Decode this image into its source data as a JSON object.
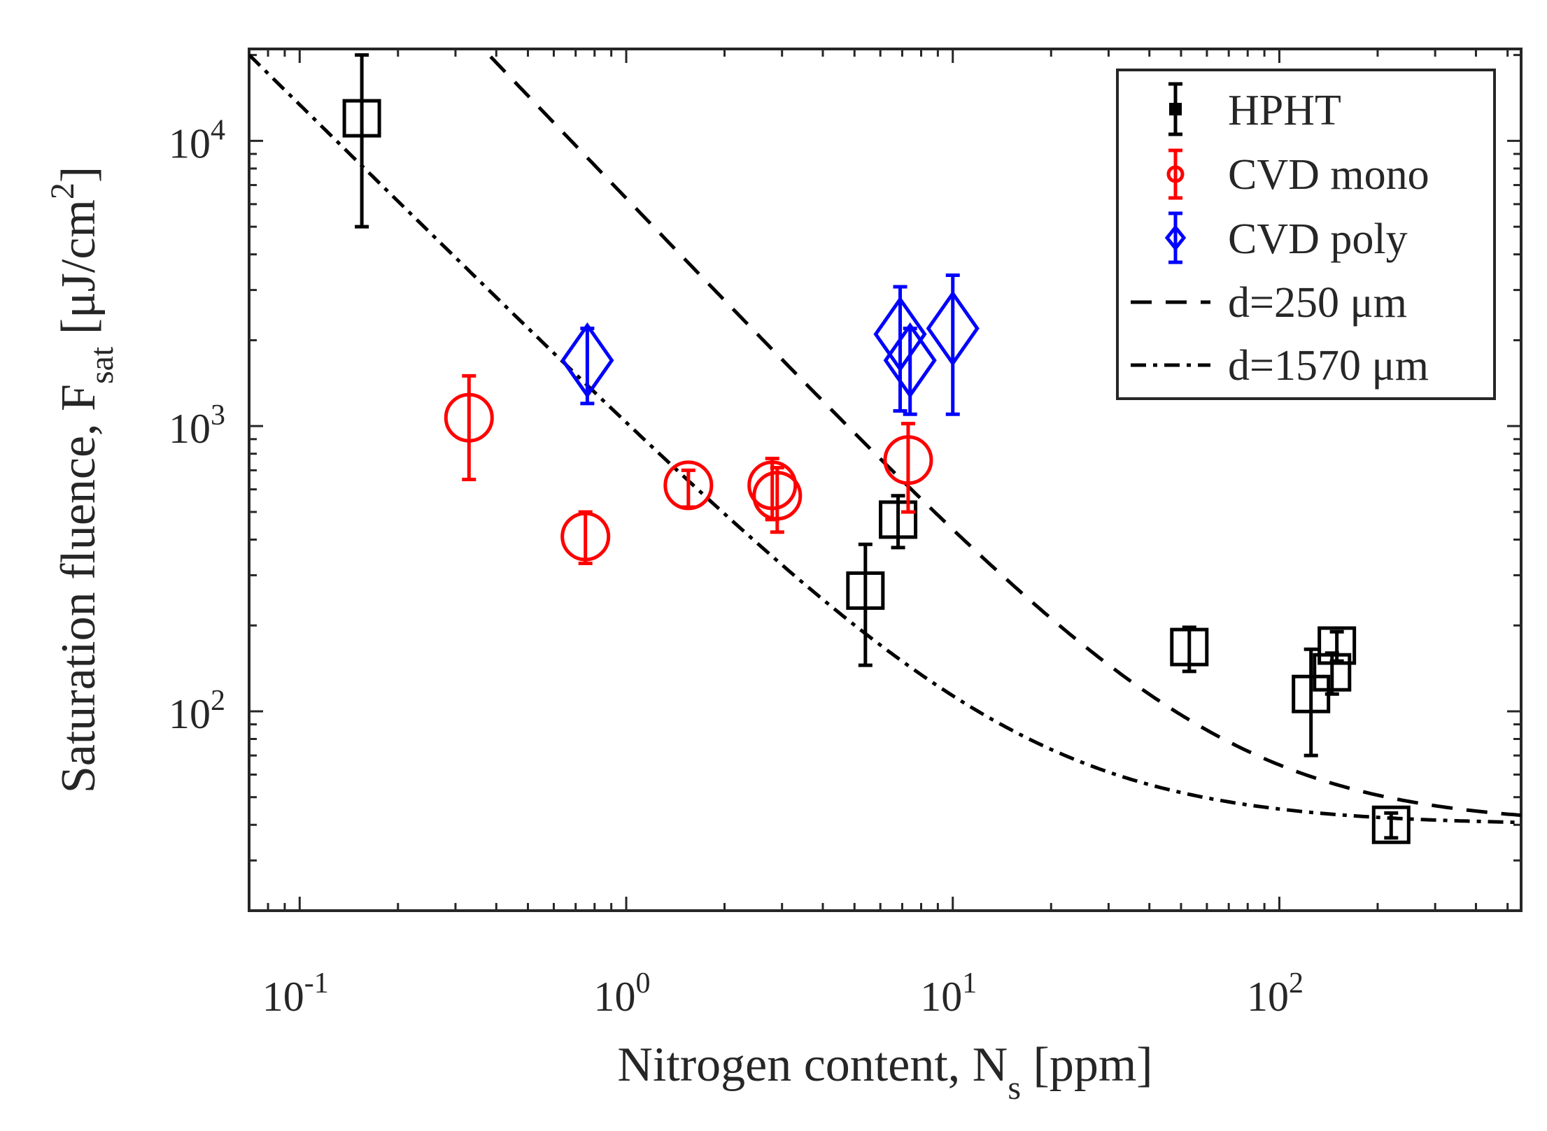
{
  "chart_data": {
    "type": "scatter",
    "title": "",
    "xlabel": "Nitrogen content, N_s [ppm]",
    "xlabel_main": "Nitrogen content, N",
    "xlabel_sub": "s",
    "xlabel_tail": " [ppm]",
    "ylabel": "Saturation fluence, F_sat [μJ/cm^2]",
    "ylabel_main": "Saturation fluence, F",
    "ylabel_sub": "sat",
    "ylabel_unit": " [μJ/cm",
    "ylabel_sup": "2",
    "ylabel_close": "]",
    "xscale": "log",
    "yscale": "log",
    "xlim": [
      0.07,
      550
    ],
    "ylim": [
      20,
      21000
    ],
    "x_ticks": [
      {
        "base": "10",
        "exp": "-1",
        "value": 0.1
      },
      {
        "base": "10",
        "exp": "0",
        "value": 1
      },
      {
        "base": "10",
        "exp": "1",
        "value": 10
      },
      {
        "base": "10",
        "exp": "2",
        "value": 100
      }
    ],
    "y_ticks": [
      {
        "base": "10",
        "exp": "2",
        "value": 100
      },
      {
        "base": "10",
        "exp": "3",
        "value": 1000
      },
      {
        "base": "10",
        "exp": "4",
        "value": 10000
      }
    ],
    "legend_position": "top-right",
    "series": [
      {
        "name": "HPHT",
        "marker": "square",
        "color": "#000000",
        "points": [
          {
            "x": 0.155,
            "y": 12000,
            "ylo": 5000,
            "yhi": 20000
          },
          {
            "x": 5.4,
            "y": 265,
            "ylo": 145,
            "yhi": 385
          },
          {
            "x": 6.8,
            "y": 470,
            "ylo": 375,
            "yhi": 570
          },
          {
            "x": 53,
            "y": 168,
            "ylo": 138,
            "yhi": 197
          },
          {
            "x": 125,
            "y": 115,
            "ylo": 70,
            "yhi": 165
          },
          {
            "x": 145,
            "y": 137,
            "ylo": 115,
            "yhi": 160
          },
          {
            "x": 150,
            "y": 170,
            "ylo": 150,
            "yhi": 190
          },
          {
            "x": 220,
            "y": 40,
            "ylo": 36,
            "yhi": 44
          }
        ]
      },
      {
        "name": "CVD mono",
        "marker": "circle",
        "color": "#ff0000",
        "points": [
          {
            "x": 0.33,
            "y": 1070,
            "ylo": 650,
            "yhi": 1500
          },
          {
            "x": 0.75,
            "y": 410,
            "ylo": 330,
            "yhi": 500
          },
          {
            "x": 1.55,
            "y": 620,
            "ylo": 520,
            "yhi": 700
          },
          {
            "x": 2.8,
            "y": 620,
            "ylo": 470,
            "yhi": 770
          },
          {
            "x": 2.9,
            "y": 570,
            "ylo": 425,
            "yhi": 715
          },
          {
            "x": 7.3,
            "y": 760,
            "ylo": 500,
            "yhi": 1020
          }
        ]
      },
      {
        "name": "CVD poly",
        "marker": "diamond",
        "color": "#0000ff",
        "points": [
          {
            "x": 0.76,
            "y": 1700,
            "ylo": 1200,
            "yhi": 2200
          },
          {
            "x": 6.9,
            "y": 2100,
            "ylo": 1130,
            "yhi": 3080
          },
          {
            "x": 7.4,
            "y": 1700,
            "ylo": 1100,
            "yhi": 2200
          },
          {
            "x": 10,
            "y": 2200,
            "ylo": 1100,
            "yhi": 3380
          }
        ]
      },
      {
        "name": "d=250 μm",
        "type": "line",
        "dash": "dashed",
        "color": "#000000",
        "model": {
          "A": 6250,
          "B": 40,
          "p": 1.2
        }
      },
      {
        "name": "d=1570 μm",
        "type": "line",
        "dash": "dashdot",
        "color": "#000000",
        "model": {
          "A": 990,
          "B": 40,
          "p": 1.13
        }
      }
    ]
  }
}
